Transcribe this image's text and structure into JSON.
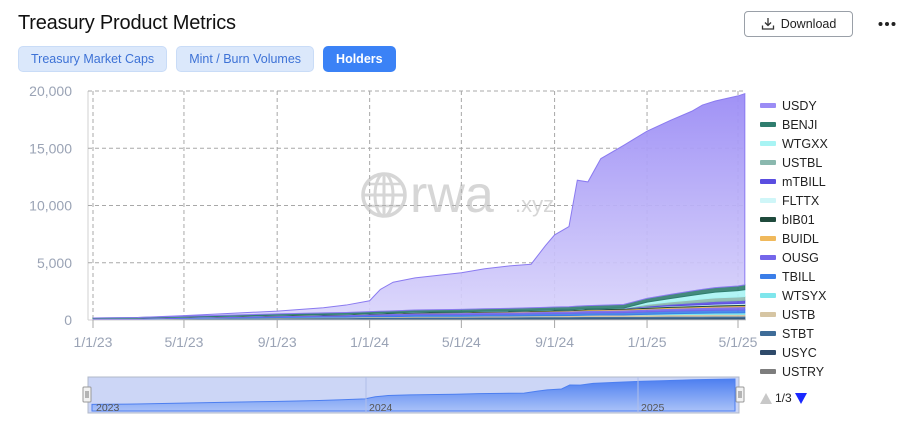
{
  "header": {
    "title": "Treasury Product Metrics",
    "download_label": "Download",
    "more_icon": "more-horizontal-icon"
  },
  "tabs": [
    {
      "label": "Treasury Market Caps",
      "active": false
    },
    {
      "label": "Mint / Burn Volumes",
      "active": false
    },
    {
      "label": "Holders",
      "active": true
    }
  ],
  "watermark": {
    "text": "rwa",
    "suffix": ".xyz"
  },
  "legend": {
    "items": [
      {
        "name": "USDY",
        "color": "#9b8cf5"
      },
      {
        "name": "BENJI",
        "color": "#2f7d6e"
      },
      {
        "name": "WTGXX",
        "color": "#a8f4f4"
      },
      {
        "name": "USTBL",
        "color": "#8ab8ae"
      },
      {
        "name": "mTBILL",
        "color": "#5a4de0"
      },
      {
        "name": "FLTTX",
        "color": "#cff6f8"
      },
      {
        "name": "bIB01",
        "color": "#1f4a3c"
      },
      {
        "name": "BUIDL",
        "color": "#f0b95c"
      },
      {
        "name": "OUSG",
        "color": "#7466ea"
      },
      {
        "name": "TBILL",
        "color": "#3b7ee8"
      },
      {
        "name": "WTSYX",
        "color": "#7fe6ec"
      },
      {
        "name": "USTB",
        "color": "#d6c5a3"
      },
      {
        "name": "STBT",
        "color": "#3e6c98"
      },
      {
        "name": "USYC",
        "color": "#2e4a6a"
      },
      {
        "name": "USTRY",
        "color": "#7d7d7d"
      }
    ],
    "page": "1/3"
  },
  "navigator": {
    "labels": [
      "2023",
      "2024",
      "2025"
    ]
  },
  "chart_data": {
    "type": "area",
    "stacked": true,
    "title": "Holders",
    "xlabel": "",
    "ylabel": "",
    "ylim": [
      0,
      20000
    ],
    "yticks": [
      "0",
      "5,000",
      "10,000",
      "15,000",
      "20,000"
    ],
    "xticks": [
      "1/1/23",
      "5/1/23",
      "9/1/23",
      "1/1/24",
      "5/1/24",
      "9/1/24",
      "1/1/25",
      "5/1/25"
    ],
    "grid": true,
    "legend_position": "right",
    "x": [
      "1/1/23",
      "3/1/23",
      "5/1/23",
      "7/1/23",
      "9/1/23",
      "11/1/23",
      "12/1/23",
      "1/1/24",
      "1/15/24",
      "2/1/24",
      "3/1/24",
      "5/1/24",
      "6/1/24",
      "7/1/24",
      "8/1/24",
      "8/20/24",
      "9/1/24",
      "9/20/24",
      "10/1/24",
      "10/15/24",
      "11/1/24",
      "12/1/24",
      "1/1/25",
      "2/1/25",
      "3/1/25",
      "3/15/25",
      "4/1/25",
      "5/1/25",
      "5/10/25"
    ],
    "series": [
      {
        "name": "USDY",
        "values": [
          0,
          0,
          50,
          150,
          250,
          450,
          650,
          950,
          1900,
          2500,
          2800,
          3200,
          3500,
          3700,
          3800,
          5400,
          6300,
          7000,
          11000,
          10800,
          12800,
          13900,
          14600,
          15200,
          15700,
          16100,
          16300,
          16600,
          16700
        ]
      },
      {
        "name": "BENJI",
        "values": [
          40,
          60,
          80,
          100,
          120,
          140,
          150,
          160,
          170,
          180,
          190,
          210,
          220,
          230,
          240,
          250,
          260,
          270,
          280,
          290,
          300,
          310,
          330,
          360,
          380,
          390,
          400,
          410,
          420
        ]
      },
      {
        "name": "WTGXX",
        "values": [
          0,
          0,
          0,
          0,
          0,
          0,
          0,
          0,
          0,
          0,
          0,
          0,
          0,
          0,
          0,
          0,
          0,
          0,
          0,
          0,
          0,
          0,
          200,
          300,
          400,
          450,
          500,
          550,
          600
        ]
      },
      {
        "name": "USTBL",
        "values": [
          0,
          0,
          0,
          0,
          0,
          0,
          0,
          0,
          0,
          0,
          0,
          0,
          0,
          0,
          0,
          0,
          0,
          0,
          0,
          0,
          0,
          0,
          150,
          200,
          250,
          280,
          300,
          320,
          330
        ]
      },
      {
        "name": "mTBILL",
        "values": [
          0,
          0,
          0,
          0,
          0,
          0,
          0,
          0,
          0,
          0,
          0,
          0,
          0,
          0,
          0,
          0,
          0,
          0,
          0,
          0,
          0,
          20,
          80,
          150,
          200,
          220,
          240,
          250,
          260
        ]
      },
      {
        "name": "FLTTX",
        "values": [
          0,
          0,
          0,
          0,
          0,
          0,
          0,
          0,
          0,
          0,
          0,
          0,
          0,
          0,
          0,
          0,
          0,
          0,
          0,
          0,
          0,
          0,
          20,
          40,
          60,
          70,
          80,
          90,
          100
        ]
      },
      {
        "name": "bIB01",
        "values": [
          0,
          0,
          10,
          20,
          30,
          40,
          40,
          50,
          50,
          50,
          60,
          60,
          60,
          60,
          70,
          70,
          70,
          70,
          80,
          80,
          80,
          80,
          90,
          90,
          90,
          90,
          100,
          100,
          100
        ]
      },
      {
        "name": "BUIDL",
        "values": [
          0,
          0,
          0,
          0,
          0,
          0,
          0,
          0,
          0,
          0,
          10,
          20,
          25,
          30,
          35,
          40,
          45,
          50,
          55,
          60,
          65,
          70,
          75,
          80,
          85,
          85,
          90,
          95,
          95
        ]
      },
      {
        "name": "OUSG",
        "values": [
          60,
          70,
          80,
          90,
          100,
          110,
          120,
          130,
          140,
          150,
          160,
          170,
          180,
          185,
          190,
          195,
          200,
          205,
          210,
          215,
          220,
          230,
          240,
          250,
          260,
          265,
          270,
          280,
          280
        ]
      },
      {
        "name": "TBILL",
        "values": [
          0,
          0,
          20,
          40,
          60,
          80,
          90,
          100,
          110,
          120,
          130,
          140,
          150,
          155,
          160,
          165,
          170,
          175,
          180,
          185,
          190,
          200,
          210,
          220,
          230,
          235,
          240,
          250,
          250
        ]
      },
      {
        "name": "WTSYX",
        "values": [
          0,
          0,
          0,
          0,
          0,
          0,
          0,
          0,
          0,
          0,
          0,
          0,
          0,
          0,
          0,
          0,
          0,
          0,
          0,
          0,
          0,
          0,
          50,
          80,
          100,
          110,
          120,
          130,
          140
        ]
      },
      {
        "name": "USTB",
        "values": [
          0,
          0,
          20,
          30,
          40,
          50,
          55,
          60,
          65,
          70,
          75,
          80,
          85,
          90,
          95,
          100,
          105,
          110,
          115,
          120,
          125,
          130,
          135,
          140,
          145,
          150,
          150,
          155,
          155
        ]
      },
      {
        "name": "STBT",
        "values": [
          50,
          60,
          70,
          80,
          90,
          100,
          100,
          110,
          110,
          110,
          120,
          120,
          120,
          120,
          130,
          130,
          130,
          130,
          130,
          140,
          140,
          140,
          140,
          150,
          150,
          150,
          150,
          150,
          150
        ]
      },
      {
        "name": "USYC",
        "values": [
          20,
          30,
          40,
          50,
          60,
          70,
          70,
          80,
          80,
          80,
          90,
          90,
          90,
          90,
          100,
          100,
          100,
          100,
          100,
          110,
          110,
          110,
          110,
          120,
          120,
          120,
          120,
          120,
          120
        ]
      },
      {
        "name": "USTRY",
        "values": [
          0,
          0,
          10,
          20,
          30,
          30,
          30,
          40,
          40,
          40,
          40,
          40,
          50,
          50,
          50,
          50,
          50,
          50,
          60,
          60,
          60,
          60,
          60,
          60,
          60,
          60,
          70,
          70,
          70
        ]
      }
    ]
  }
}
